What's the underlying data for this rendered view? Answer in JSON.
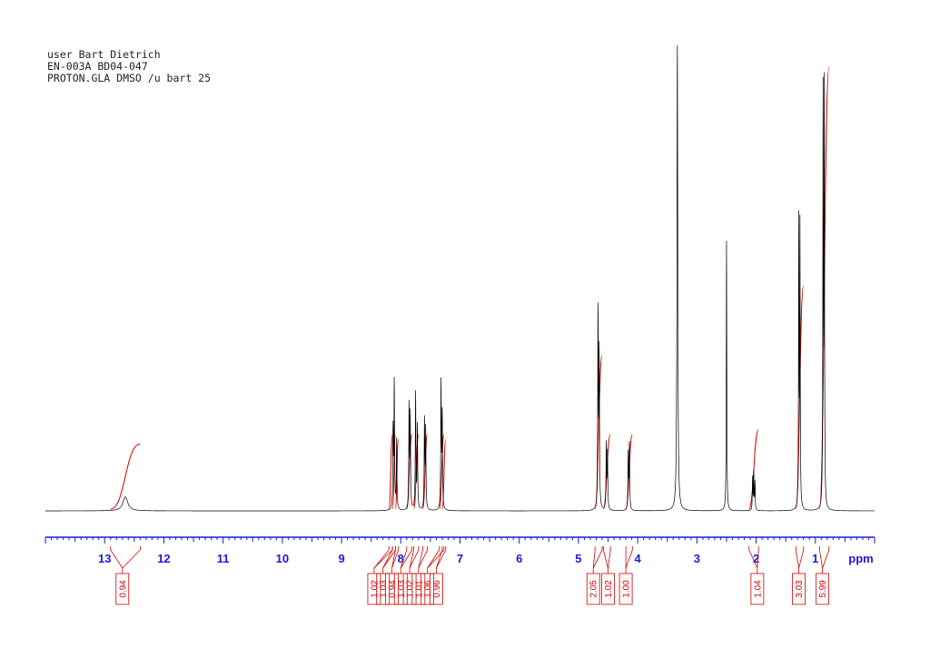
{
  "header": {
    "line1": "user Bart Dietrich",
    "line2": "EN-003A BD04-047",
    "line3": "PROTON.GLA DMSO /u bart 25"
  },
  "colors": {
    "spectrum": "#000000",
    "integral": "#d40000",
    "axis": "#1a1adb"
  },
  "chart_data": {
    "type": "line",
    "title": "",
    "xlabel": "ppm",
    "ylabel": "",
    "xlim": [
      14.0,
      0.0
    ],
    "x_reversed": true,
    "grid": false,
    "tick_labels": [
      "13",
      "12",
      "11",
      "10",
      "9",
      "8",
      "7",
      "6",
      "5",
      "4",
      "3",
      "2",
      "1"
    ],
    "peaks": [
      {
        "shift": 12.65,
        "height": 0.03,
        "width": 0.05
      },
      {
        "shift": 8.13,
        "height": 0.17,
        "width": 0.006
      },
      {
        "shift": 8.11,
        "height": 0.27,
        "width": 0.006
      },
      {
        "shift": 8.07,
        "height": 0.15,
        "width": 0.006
      },
      {
        "shift": 7.86,
        "height": 0.22,
        "width": 0.006
      },
      {
        "shift": 7.84,
        "height": 0.2,
        "width": 0.006
      },
      {
        "shift": 7.75,
        "height": 0.25,
        "width": 0.006
      },
      {
        "shift": 7.72,
        "height": 0.18,
        "width": 0.006
      },
      {
        "shift": 7.6,
        "height": 0.19,
        "width": 0.006
      },
      {
        "shift": 7.58,
        "height": 0.17,
        "width": 0.006
      },
      {
        "shift": 7.32,
        "height": 0.27,
        "width": 0.006
      },
      {
        "shift": 7.3,
        "height": 0.2,
        "width": 0.006
      },
      {
        "shift": 4.67,
        "height": 0.42,
        "width": 0.006
      },
      {
        "shift": 4.65,
        "height": 0.33,
        "width": 0.006
      },
      {
        "shift": 4.53,
        "height": 0.14,
        "width": 0.006
      },
      {
        "shift": 4.51,
        "height": 0.12,
        "width": 0.006
      },
      {
        "shift": 4.16,
        "height": 0.12,
        "width": 0.006
      },
      {
        "shift": 4.14,
        "height": 0.14,
        "width": 0.006
      },
      {
        "shift": 3.33,
        "height": 1.0,
        "width": 0.008
      },
      {
        "shift": 2.5,
        "height": 0.58,
        "width": 0.005
      },
      {
        "shift": 2.06,
        "height": 0.07,
        "width": 0.005
      },
      {
        "shift": 2.04,
        "height": 0.08,
        "width": 0.005
      },
      {
        "shift": 2.02,
        "height": 0.06,
        "width": 0.005
      },
      {
        "shift": 1.28,
        "height": 0.61,
        "width": 0.005
      },
      {
        "shift": 1.26,
        "height": 0.6,
        "width": 0.005
      },
      {
        "shift": 0.87,
        "height": 0.88,
        "width": 0.005
      },
      {
        "shift": 0.85,
        "height": 0.89,
        "width": 0.005
      }
    ],
    "integrals": [
      {
        "from": 12.9,
        "to": 12.4,
        "value": "0.94",
        "height": 0.14
      },
      {
        "from": 8.2,
        "to": 8.14,
        "value": "1.02",
        "height": 0.16
      },
      {
        "from": 8.14,
        "to": 8.09,
        "value": "1.03",
        "height": 0.16
      },
      {
        "from": 8.09,
        "to": 8.04,
        "value": "0.94",
        "height": 0.15
      },
      {
        "from": 7.9,
        "to": 7.81,
        "value": "1.03",
        "height": 0.16
      },
      {
        "from": 7.78,
        "to": 7.7,
        "value": "1.02",
        "height": 0.16
      },
      {
        "from": 7.63,
        "to": 7.55,
        "value": "1.01",
        "height": 0.16
      },
      {
        "from": 7.35,
        "to": 7.27,
        "value": "1.06",
        "height": 0.16
      },
      {
        "from": 7.3,
        "to": 7.24,
        "value": "0.96",
        "height": 0.15
      },
      {
        "from": 4.72,
        "to": 4.6,
        "value": "2.05",
        "height": 0.33
      },
      {
        "from": 4.58,
        "to": 4.46,
        "value": "1.02",
        "height": 0.16
      },
      {
        "from": 4.2,
        "to": 4.09,
        "value": "1.00",
        "height": 0.16
      },
      {
        "from": 2.12,
        "to": 1.96,
        "value": "1.04",
        "height": 0.17
      },
      {
        "from": 1.33,
        "to": 1.2,
        "value": "3.03",
        "height": 0.48
      },
      {
        "from": 0.93,
        "to": 0.77,
        "value": "5.99",
        "height": 0.95
      }
    ],
    "label_positions": [
      {
        "value": "0.94",
        "shift": 12.7
      },
      {
        "value": "1.02",
        "shift": 8.45
      },
      {
        "value": "1.03",
        "shift": 8.3
      },
      {
        "value": "0.94",
        "shift": 8.15
      },
      {
        "value": "1.03",
        "shift": 8.0
      },
      {
        "value": "1.02",
        "shift": 7.85
      },
      {
        "value": "1.01",
        "shift": 7.7
      },
      {
        "value": "1.06",
        "shift": 7.55
      },
      {
        "value": "0.96",
        "shift": 7.4
      },
      {
        "value": "2.05",
        "shift": 4.75
      },
      {
        "value": "1.02",
        "shift": 4.5
      },
      {
        "value": "1.00",
        "shift": 4.2
      },
      {
        "value": "1.04",
        "shift": 1.98
      },
      {
        "value": "3.03",
        "shift": 1.28
      },
      {
        "value": "5.99",
        "shift": 0.88
      }
    ]
  }
}
